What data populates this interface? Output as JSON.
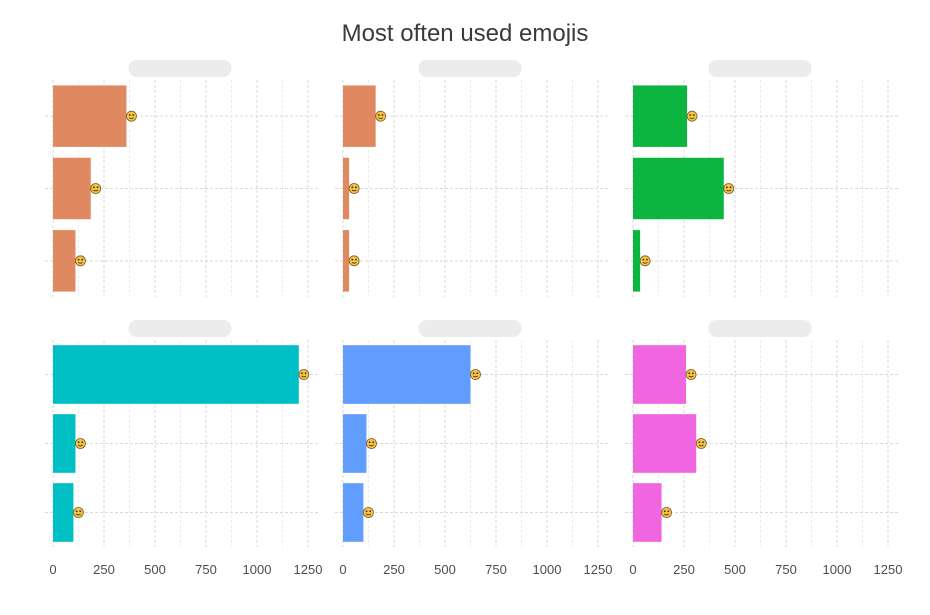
{
  "chart_data": {
    "type": "bar",
    "orientation": "horizontal",
    "title": "Most often used emojis",
    "xlim": [
      0,
      1300
    ],
    "x_ticks": [
      0,
      250,
      500,
      750,
      1000,
      1250
    ],
    "grid": true,
    "facet_titles_obscured": true,
    "facets": [
      {
        "color": "#E08860",
        "emojis": [
          "hugging-face-emoji",
          "thinking-face-emoji",
          "face-with-tears-of-joy-emoji"
        ],
        "values": [
          360,
          185,
          110
        ]
      },
      {
        "color": "#E08860",
        "emojis": [
          "hugging-face-emoji",
          "thinking-face-emoji",
          "face-with-tears-of-joy-emoji"
        ],
        "values": [
          160,
          30,
          30
        ]
      },
      {
        "color": "#0BB53F",
        "emojis": [
          "hugging-face-emoji",
          "thinking-face-emoji",
          "dog-emoji"
        ],
        "values": [
          265,
          445,
          35
        ]
      },
      {
        "color": "#00BFC4",
        "emojis": [
          "hugging-face-emoji",
          "thinking-face-emoji",
          "face-with-tears-of-joy-emoji"
        ],
        "values": [
          1205,
          110,
          100
        ]
      },
      {
        "color": "#619CFF",
        "emojis": [
          "hugging-face-emoji",
          "thinking-face-emoji",
          "face-with-tears-of-joy-emoji"
        ],
        "values": [
          625,
          115,
          100
        ]
      },
      {
        "color": "#F066E0",
        "emojis": [
          "hugging-face-emoji",
          "thinking-face-emoji",
          "face-with-tears-of-joy-emoji"
        ],
        "values": [
          260,
          310,
          140
        ]
      }
    ]
  }
}
